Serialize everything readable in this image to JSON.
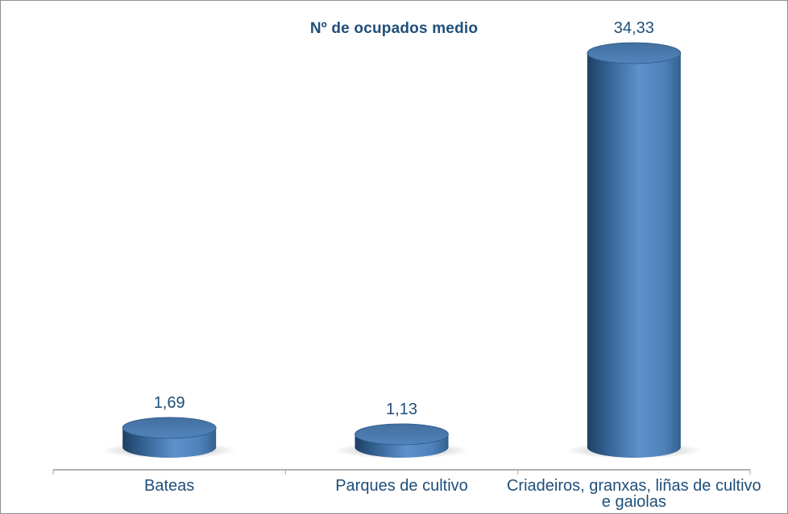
{
  "window": {
    "background": "#ffffff",
    "border_color": "#8f8f8f"
  },
  "chart_data": {
    "type": "bar",
    "variant": "3d-cylinder",
    "title": "Nº de ocupados medio",
    "categories": [
      "Bateas",
      "Parques de cultivo",
      "Criadeiros, granxas, liñas de cultivo\ne gaiolas"
    ],
    "values": [
      1.69,
      1.13,
      34.33
    ],
    "value_labels": [
      "1,69",
      "1,13",
      "34,33"
    ],
    "xlabel": "",
    "ylabel": "",
    "ylim": [
      0,
      34.33
    ],
    "grid": false,
    "legend": false,
    "axis": {
      "category_axis_visible": true,
      "value_axis_visible": false
    },
    "colors": {
      "label_color": "#1F4E79",
      "title_color": "#1F4E79",
      "axis_color": "#A6A6A6",
      "shadow_color": "#8A8A8A",
      "top_face_top": "#426F9F",
      "top_face_bottom": "#5184BC",
      "top_face_stroke": "#2F5B88",
      "body_gradient": [
        {
          "offset": 0.0,
          "color": "#1F4062"
        },
        {
          "offset": 0.18,
          "color": "#2F5C8B"
        },
        {
          "offset": 0.55,
          "color": "#5E91CB"
        },
        {
          "offset": 0.82,
          "color": "#4F82BB"
        },
        {
          "offset": 0.96,
          "color": "#3A699B"
        },
        {
          "offset": 1.0,
          "color": "#305C8C"
        }
      ]
    }
  }
}
